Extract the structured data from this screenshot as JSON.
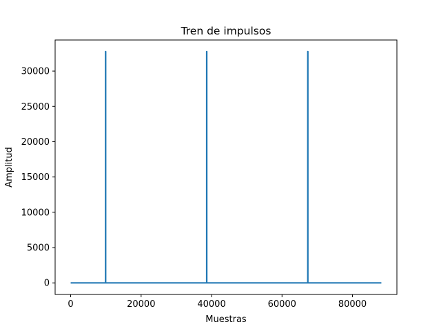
{
  "chart_data": {
    "type": "line",
    "title": "Tren de impulsos",
    "xlabel": "Muestras",
    "ylabel": "Amplitud",
    "xlim": [
      -4410,
      92610
    ],
    "ylim": [
      -1638,
      34403
    ],
    "xticks": [
      0,
      20000,
      40000,
      60000,
      80000
    ],
    "xtick_labels": [
      "0",
      "20000",
      "40000",
      "60000",
      "80000"
    ],
    "yticks": [
      0,
      5000,
      10000,
      15000,
      20000,
      25000,
      30000
    ],
    "ytick_labels": [
      "0",
      "5000",
      "10000",
      "15000",
      "20000",
      "25000",
      "30000"
    ],
    "grid": false,
    "series": [
      {
        "color": "#1f77b4",
        "x": [
          0,
          9900,
          9900,
          9950,
          9950,
          38600,
          38600,
          38650,
          38650,
          67300,
          67300,
          67350,
          67350,
          88200
        ],
        "y": [
          0,
          0,
          32767,
          32767,
          0,
          0,
          32767,
          32767,
          0,
          0,
          32767,
          32767,
          0,
          0
        ]
      }
    ]
  }
}
